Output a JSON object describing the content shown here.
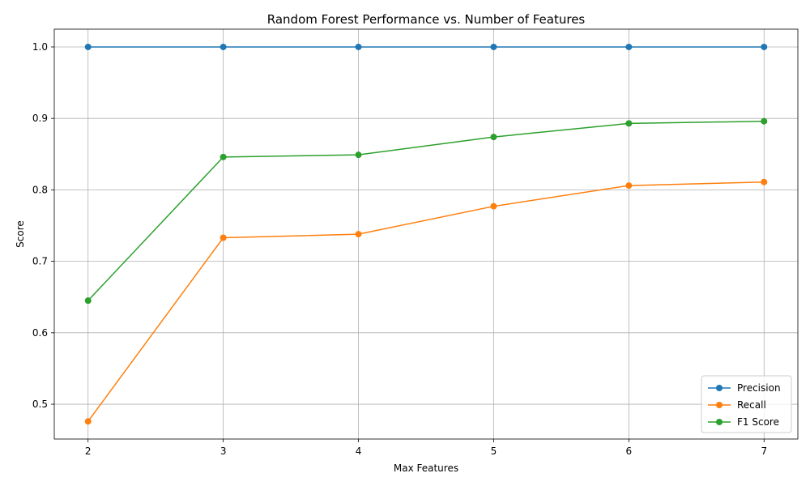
{
  "chart_data": {
    "type": "line",
    "title": "Random Forest Performance vs. Number of Features",
    "xlabel": "Max Features",
    "ylabel": "Score",
    "x": [
      2,
      3,
      4,
      5,
      6,
      7
    ],
    "x_tick_labels": [
      "2",
      "3",
      "4",
      "5",
      "6",
      "7"
    ],
    "y_ticks": [
      0.5,
      0.6,
      0.7,
      0.8,
      0.9,
      1.0
    ],
    "y_tick_labels": [
      "0.5",
      "0.6",
      "0.7",
      "0.8",
      "0.9",
      "1.0"
    ],
    "xlim": [
      1.75,
      7.25
    ],
    "ylim": [
      0.4513,
      1.0249
    ],
    "grid": true,
    "legend_position": "lower-right",
    "series": [
      {
        "name": "Precision",
        "color": "#1f77b4",
        "values": [
          1.0,
          1.0,
          1.0,
          1.0,
          1.0,
          1.0
        ]
      },
      {
        "name": "Recall",
        "color": "#ff7f0e",
        "values": [
          0.476,
          0.733,
          0.738,
          0.777,
          0.806,
          0.811
        ]
      },
      {
        "name": "F1 Score",
        "color": "#2ca02c",
        "values": [
          0.645,
          0.846,
          0.849,
          0.874,
          0.893,
          0.896
        ]
      }
    ]
  }
}
